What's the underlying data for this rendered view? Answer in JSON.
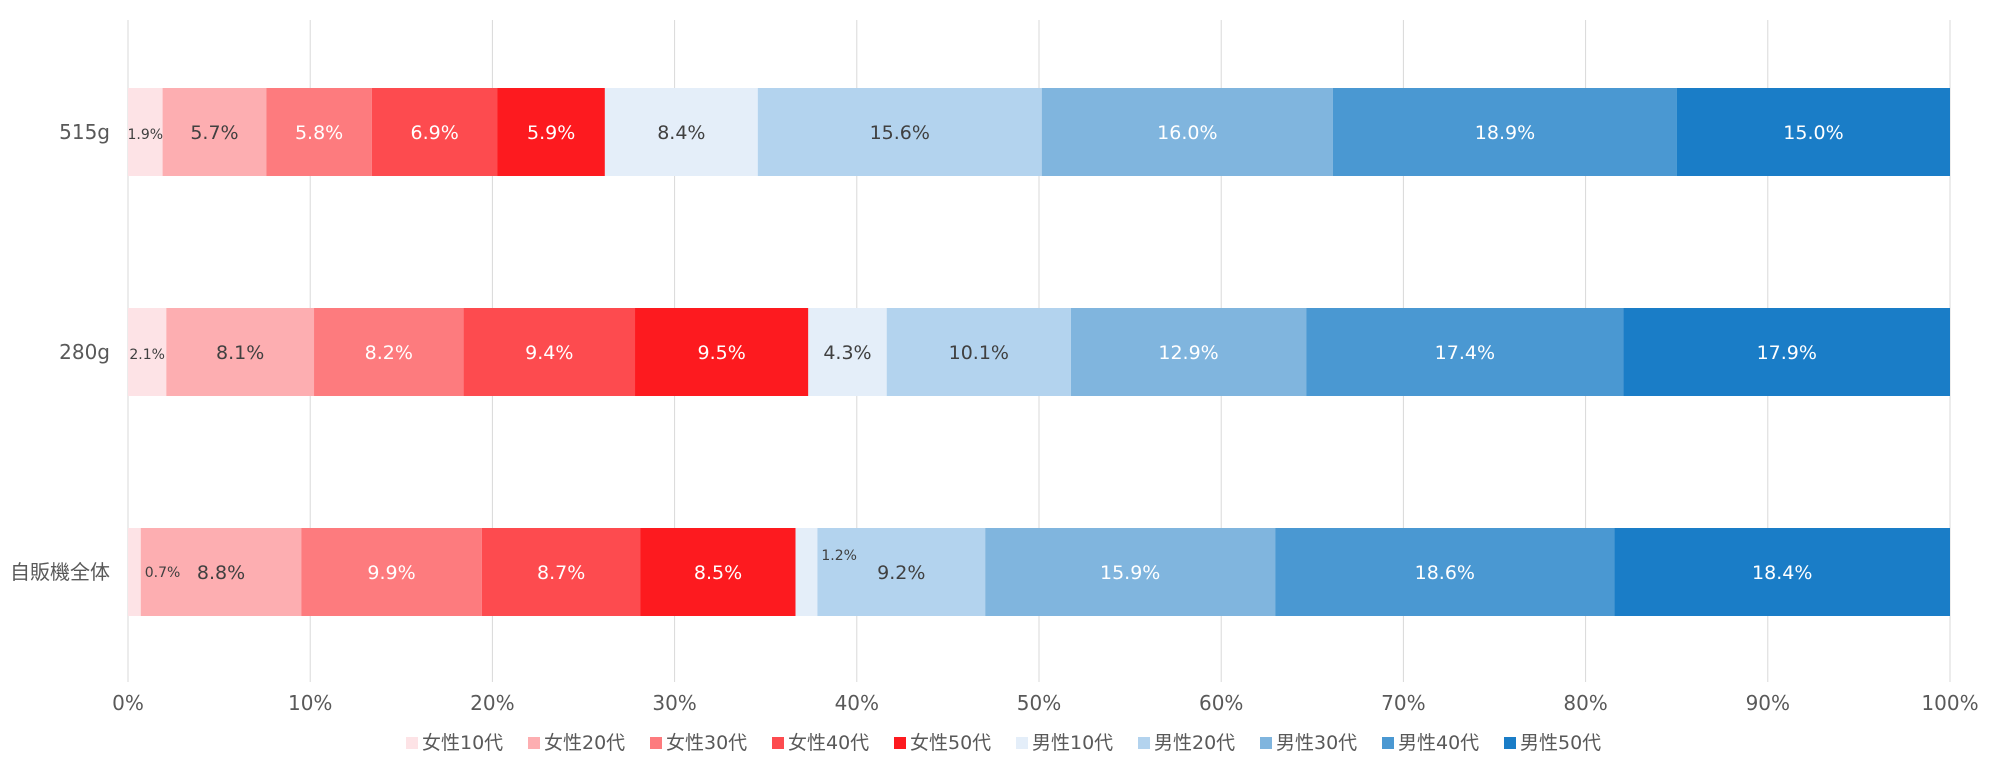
{
  "chart_data": {
    "type": "bar",
    "orientation": "horizontal",
    "stacked": true,
    "normalized": true,
    "title": "",
    "xlabel": "",
    "ylabel": "",
    "xlim": [
      0,
      100
    ],
    "grid": true,
    "legend_position": "bottom",
    "categories": [
      "515g",
      "280g",
      "自販機全体"
    ],
    "x_ticks": [
      "0%",
      "10%",
      "20%",
      "30%",
      "40%",
      "50%",
      "60%",
      "70%",
      "80%",
      "90%",
      "100%"
    ],
    "series": [
      {
        "name": "女性10代",
        "color": "#fde3e6",
        "label_color": "#404040",
        "small_label": true,
        "values": [
          1.9,
          2.1,
          0.7
        ],
        "labels": [
          "1.9%",
          "2.1%",
          "0.7%"
        ]
      },
      {
        "name": "女性20代",
        "color": "#fdaeb1",
        "label_color": "#404040",
        "small_label": false,
        "values": [
          5.7,
          8.1,
          8.8
        ],
        "labels": [
          "5.7%",
          "8.1%",
          "8.8%"
        ]
      },
      {
        "name": "女性30代",
        "color": "#fd7b7e",
        "label_color": "#ffffff",
        "small_label": false,
        "values": [
          5.8,
          8.2,
          9.9
        ],
        "labels": [
          "5.8%",
          "8.2%",
          "9.9%"
        ]
      },
      {
        "name": "女性40代",
        "color": "#fd4b4f",
        "label_color": "#ffffff",
        "small_label": false,
        "values": [
          6.9,
          9.4,
          8.7
        ],
        "labels": [
          "6.9%",
          "9.4%",
          "8.7%"
        ]
      },
      {
        "name": "女性50代",
        "color": "#fd1a1f",
        "label_color": "#ffffff",
        "small_label": false,
        "values": [
          5.9,
          9.5,
          8.5
        ],
        "labels": [
          "5.9%",
          "9.5%",
          "8.5%"
        ]
      },
      {
        "name": "男性10代",
        "color": "#e4eef9",
        "label_color": "#404040",
        "small_label": false,
        "values": [
          8.4,
          4.3,
          1.2
        ],
        "labels": [
          "8.4%",
          "4.3%",
          "1.2%"
        ]
      },
      {
        "name": "男性20代",
        "color": "#b3d3ee",
        "label_color": "#404040",
        "small_label": false,
        "values": [
          15.6,
          10.1,
          9.2
        ],
        "labels": [
          "15.6%",
          "10.1%",
          "9.2%"
        ]
      },
      {
        "name": "男性30代",
        "color": "#80b5de",
        "label_color": "#ffffff",
        "small_label": false,
        "values": [
          16.0,
          12.9,
          15.9
        ],
        "labels": [
          "16.0%",
          "12.9%",
          "15.9%"
        ]
      },
      {
        "name": "男性40代",
        "color": "#4a98d2",
        "label_color": "#ffffff",
        "small_label": false,
        "values": [
          18.9,
          17.4,
          18.6
        ],
        "labels": [
          "18.9%",
          "17.4%",
          "18.6%"
        ]
      },
      {
        "name": "男性50代",
        "color": "#1a7dc7",
        "label_color": "#ffffff",
        "small_label": false,
        "values": [
          15.0,
          17.9,
          18.4
        ],
        "labels": [
          "15.0%",
          "17.9%",
          "18.4%"
        ]
      }
    ],
    "colors": {
      "grid": "#d9d9d9",
      "axis_text": "#595959"
    }
  }
}
